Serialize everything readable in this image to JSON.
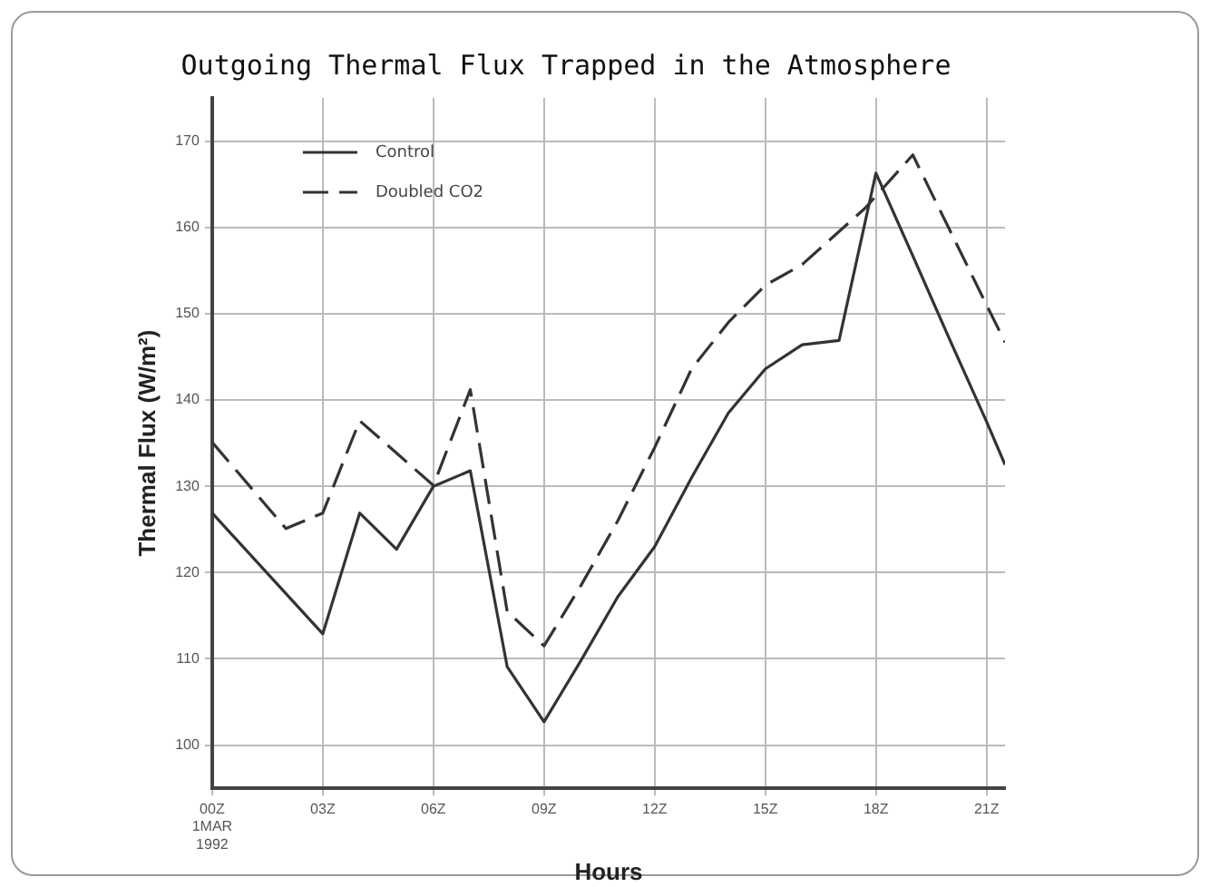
{
  "chart_data": {
    "type": "line",
    "title": "Outgoing Thermal Flux Trapped in the Atmosphere",
    "xlabel": "Hours",
    "ylabel": "Thermal Flux (W/m²)",
    "xlim": [
      0,
      21.5
    ],
    "xticks": [
      {
        "value": 0,
        "label": "00Z 1MAR 1992"
      },
      {
        "value": 3,
        "label": "03Z"
      },
      {
        "value": 6,
        "label": "06Z"
      },
      {
        "value": 9,
        "label": "09Z"
      },
      {
        "value": 12,
        "label": "12Z"
      },
      {
        "value": 15,
        "label": "15Z"
      },
      {
        "value": 18,
        "label": "18Z"
      },
      {
        "value": 21,
        "label": "21Z"
      }
    ],
    "ylim": [
      95,
      175
    ],
    "yticks": [
      100,
      110,
      120,
      130,
      140,
      150,
      160,
      170
    ],
    "grid": true,
    "legend": "top left",
    "marker": "none",
    "series": [
      {
        "name": "Control",
        "color": "#333333",
        "line_style": "solid",
        "x": [
          0,
          3,
          4,
          5,
          6,
          7,
          8,
          9,
          10,
          11,
          12,
          13,
          14,
          15,
          16,
          17,
          18,
          19,
          20,
          21,
          21.5
        ],
        "values": [
          126.9,
          112.9,
          126.9,
          122.7,
          130,
          131.8,
          109.1,
          102.7,
          109.8,
          117.2,
          123,
          131,
          138.5,
          143.6,
          146.4,
          146.9,
          166.3,
          156.7,
          147,
          137.5,
          132.5
        ]
      },
      {
        "name": "Doubled CO2",
        "color": "#333333",
        "line_style": "dashed",
        "x": [
          0,
          2,
          3,
          4,
          6,
          7,
          8,
          9,
          10,
          11,
          12,
          13,
          14,
          15,
          16,
          17.7,
          19,
          20,
          21,
          21.5
        ],
        "values": [
          135.1,
          125.1,
          126.9,
          137.6,
          130.1,
          141.2,
          115.5,
          111.5,
          118.5,
          126,
          134.5,
          143.6,
          149,
          153.3,
          155.7,
          162.2,
          168.4,
          159.7,
          151,
          146.7
        ]
      }
    ]
  }
}
